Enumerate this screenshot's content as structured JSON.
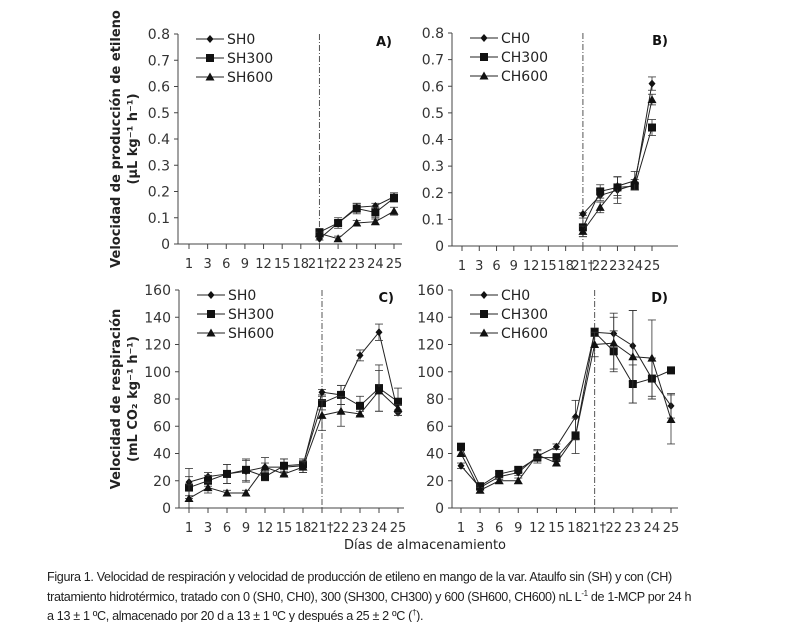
{
  "x_label": "Días de almacenamiento",
  "caption": {
    "line1": "Figura 1. Velocidad de respiración y velocidad de producción de etileno en mango de la var. Ataulfo sin (SH) y con (CH)",
    "line2_a": "tratamiento hidrotérmico, tratado con 0 (SH0, CH0), 300 (SH300, CH300) y 600 (SH600, CH600) nL L",
    "line2_sup": "-1",
    "line2_b": " de 1-MCP por 24 h",
    "line3_a": "a 13 ± 1 ºC, almacenado por 20 d a 13 ± 1 ºC y después a 25 ± 2 ºC (",
    "line3_sup": "†",
    "line3_b": ")."
  },
  "chart_data": [
    {
      "type": "line",
      "panel_label": "A)",
      "ylabel": "Velocidad de producción de etileno",
      "ylabel_unit": "(µL kg⁻¹ h⁻¹)",
      "categories": [
        "1",
        "3",
        "6",
        "9",
        "12",
        "15",
        "18",
        "21†",
        "22",
        "23",
        "24",
        "25"
      ],
      "ylim": [
        0,
        0.8
      ],
      "yticks": [
        "0",
        "0.1",
        "0.2",
        "0.3",
        "0.4",
        "0.5",
        "0.6",
        "0.7",
        "0.8"
      ],
      "marker_line_at": "21†",
      "legend": "top-left",
      "series": [
        {
          "name": "SH0",
          "marker": "diamond",
          "values": [
            null,
            null,
            null,
            null,
            null,
            null,
            null,
            0.02,
            0.08,
            0.14,
            0.145,
            0.18
          ],
          "errors": [
            null,
            null,
            null,
            null,
            null,
            null,
            null,
            0.005,
            0.01,
            0.015,
            0.01,
            0.015
          ]
        },
        {
          "name": "SH300",
          "marker": "square",
          "values": [
            null,
            null,
            null,
            null,
            null,
            null,
            null,
            0.045,
            0.08,
            0.135,
            0.12,
            0.175
          ],
          "errors": [
            null,
            null,
            null,
            null,
            null,
            null,
            null,
            0.01,
            0.02,
            0.02,
            0.02,
            0.015
          ]
        },
        {
          "name": "SH600",
          "marker": "triangle",
          "values": [
            null,
            null,
            null,
            null,
            null,
            null,
            null,
            0.04,
            0.02,
            0.08,
            0.085,
            0.125
          ],
          "errors": [
            null,
            null,
            null,
            null,
            null,
            null,
            null,
            0.005,
            0.01,
            0.01,
            0.01,
            0.015
          ]
        }
      ]
    },
    {
      "type": "line",
      "panel_label": "B)",
      "categories": [
        "1",
        "3",
        "6",
        "9",
        "12",
        "15",
        "18",
        "21†",
        "22",
        "23",
        "24",
        "25"
      ],
      "ylim": [
        0,
        0.8
      ],
      "yticks": [
        "0",
        "0.1",
        "0.2",
        "0.3",
        "0.4",
        "0.5",
        "0.6",
        "0.7",
        "0.8"
      ],
      "marker_line_at": "21†",
      "legend": "top-left",
      "series": [
        {
          "name": "CH0",
          "marker": "diamond",
          "values": [
            null,
            null,
            null,
            null,
            null,
            null,
            null,
            0.12,
            0.19,
            0.21,
            0.23,
            0.61
          ],
          "errors": [
            null,
            null,
            null,
            null,
            null,
            null,
            null,
            0.005,
            0.02,
            0.05,
            0.02,
            0.025
          ]
        },
        {
          "name": "CH300",
          "marker": "square",
          "values": [
            null,
            null,
            null,
            null,
            null,
            null,
            null,
            0.07,
            0.205,
            0.22,
            0.225,
            0.445
          ],
          "errors": [
            null,
            null,
            null,
            null,
            null,
            null,
            null,
            0.035,
            0.025,
            0.04,
            0.015,
            0.03
          ]
        },
        {
          "name": "CH600",
          "marker": "triangle",
          "values": [
            null,
            null,
            null,
            null,
            null,
            null,
            null,
            0.055,
            0.145,
            0.225,
            0.245,
            0.55
          ],
          "errors": [
            null,
            null,
            null,
            null,
            null,
            null,
            null,
            0.02,
            0.02,
            0.035,
            0.035,
            0.02
          ]
        }
      ]
    },
    {
      "type": "line",
      "panel_label": "C)",
      "ylabel": "Velocidad de respiración",
      "ylabel_unit": "(mL CO₂ kg⁻¹ h⁻¹)",
      "categories": [
        "1",
        "3",
        "6",
        "9",
        "12",
        "15",
        "18",
        "21†",
        "22",
        "23",
        "24",
        "25"
      ],
      "ylim": [
        0,
        160
      ],
      "yticks": [
        "0",
        "20",
        "40",
        "60",
        "80",
        "100",
        "120",
        "140",
        "160"
      ],
      "marker_line_at": "21†",
      "legend": "top-left",
      "series": [
        {
          "name": "SH0",
          "marker": "diamond",
          "values": [
            19,
            23,
            25,
            27,
            30,
            30,
            31,
            85,
            83,
            112,
            129,
            70
          ],
          "errors": [
            10,
            3,
            7,
            8,
            7,
            6,
            5,
            2,
            7,
            4,
            6,
            2
          ]
        },
        {
          "name": "SH300",
          "marker": "square",
          "values": [
            15,
            20,
            25,
            28,
            23,
            31,
            32,
            77,
            83,
            75,
            88,
            78
          ],
          "errors": [
            8,
            4,
            7,
            8,
            3,
            5,
            4,
            5,
            7,
            7,
            17,
            10
          ]
        },
        {
          "name": "SH600",
          "marker": "triangle",
          "values": [
            7,
            15,
            11,
            11,
            30,
            25,
            30,
            68,
            71,
            69,
            86,
            73
          ],
          "errors": [
            10,
            4,
            2,
            2,
            3,
            2,
            4,
            11,
            11,
            2,
            15,
            3
          ]
        }
      ]
    },
    {
      "type": "line",
      "panel_label": "D)",
      "categories": [
        "1",
        "3",
        "6",
        "9",
        "12",
        "15",
        "18",
        "21†",
        "22",
        "23",
        "24",
        "25"
      ],
      "ylim": [
        0,
        160
      ],
      "yticks": [
        "0",
        "20",
        "40",
        "60",
        "80",
        "100",
        "120",
        "140",
        "160"
      ],
      "marker_line_at": "21†",
      "legend": "top-left",
      "series": [
        {
          "name": "CH0",
          "marker": "diamond",
          "values": [
            31,
            15,
            23,
            26,
            38,
            45,
            67,
            129,
            128,
            119,
            95,
            75
          ],
          "errors": [
            2,
            2,
            2,
            2,
            5,
            2,
            12,
            3,
            15,
            26,
            15,
            9
          ]
        },
        {
          "name": "CH300",
          "marker": "square",
          "values": [
            45,
            16,
            25,
            28,
            37,
            37,
            53,
            129,
            115,
            91,
            95,
            101
          ],
          "errors": [
            2,
            2,
            2,
            2,
            2,
            3,
            13,
            3,
            15,
            14,
            15,
            2
          ]
        },
        {
          "name": "CH600",
          "marker": "triangle",
          "values": [
            40,
            13,
            20,
            20,
            39,
            33,
            53,
            120,
            121,
            111,
            110,
            65
          ],
          "errors": [
            2,
            2,
            2,
            2,
            3,
            2,
            3,
            9,
            19,
            34,
            28,
            18
          ]
        }
      ]
    }
  ]
}
